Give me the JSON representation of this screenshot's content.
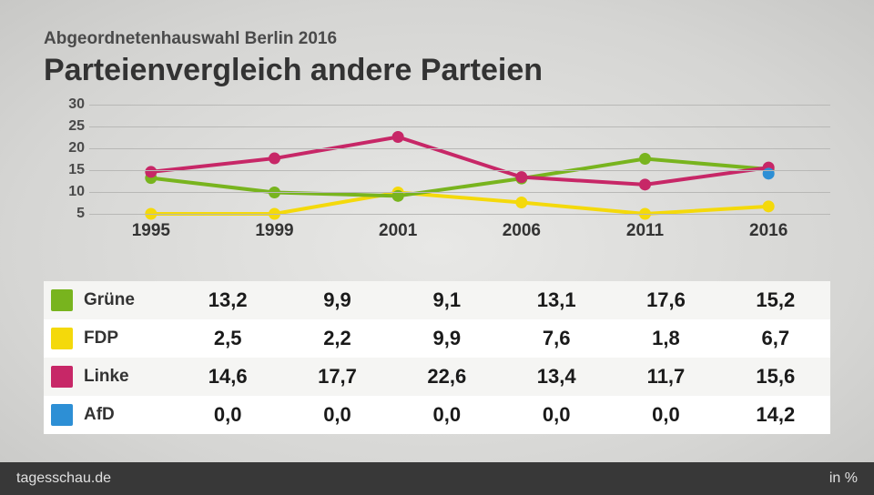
{
  "header": {
    "subtitle": "Abgeordnetenhauswahl Berlin 2016",
    "title": "Parteienvergleich andere Parteien"
  },
  "chart": {
    "type": "line",
    "ylim": [
      5,
      30
    ],
    "yticks": [
      5,
      10,
      15,
      20,
      25,
      30
    ],
    "ytick_labels": [
      "5",
      "10",
      "15",
      "20",
      "25",
      "30"
    ],
    "categories": [
      "1995",
      "1999",
      "2001",
      "2006",
      "2011",
      "2016"
    ],
    "grid_color": "#b8b8b6",
    "background_color": "transparent",
    "line_width": 4,
    "marker_radius": 6.5,
    "series": [
      {
        "name": "Grüne",
        "color": "#78b41e",
        "values": [
          13.2,
          9.9,
          9.1,
          13.1,
          17.6,
          15.2
        ],
        "display": [
          "13,2",
          "9,9",
          "9,1",
          "13,1",
          "17,6",
          "15,2"
        ]
      },
      {
        "name": "FDP",
        "color": "#f4d90b",
        "values": [
          2.5,
          2.2,
          9.9,
          7.6,
          1.8,
          6.7
        ],
        "display": [
          "2,5",
          "2,2",
          "9,9",
          "7,6",
          "1,8",
          "6,7"
        ]
      },
      {
        "name": "Linke",
        "color": "#c72767",
        "values": [
          14.6,
          17.7,
          22.6,
          13.4,
          11.7,
          15.6
        ],
        "display": [
          "14,6",
          "17,7",
          "22,6",
          "13,4",
          "11,7",
          "15,6"
        ]
      },
      {
        "name": "AfD",
        "color": "#2d8fd5",
        "values": [
          0.0,
          0.0,
          0.0,
          0.0,
          0.0,
          14.2
        ],
        "display": [
          "0,0",
          "0,0",
          "0,0",
          "0,0",
          "0,0",
          "14,2"
        ],
        "plot_only_last": true
      }
    ]
  },
  "table": {
    "row_odd_bg": "#f5f5f3",
    "row_even_bg": "#ffffff"
  },
  "footer": {
    "source": "tagesschau.de",
    "unit": "in %"
  }
}
